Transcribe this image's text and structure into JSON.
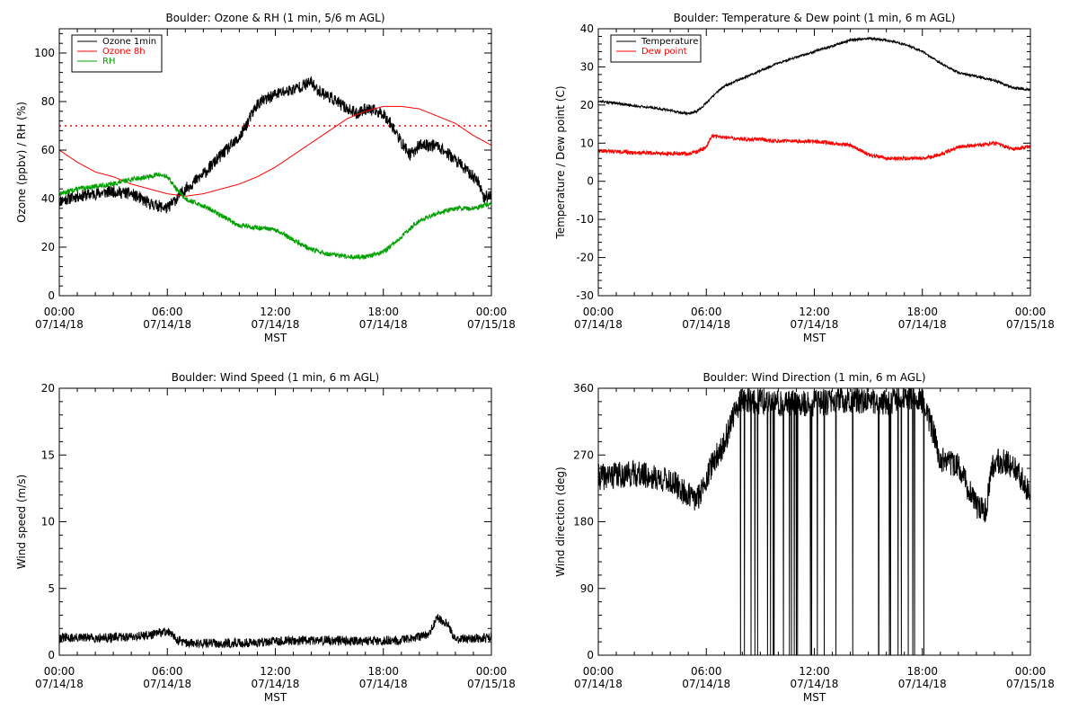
{
  "x_tick_labels": [
    [
      "00:00",
      "07/14/18"
    ],
    [
      "06:00",
      "07/14/18"
    ],
    [
      "12:00",
      "07/14/18"
    ],
    [
      "18:00",
      "07/14/18"
    ],
    [
      "00:00",
      "07/15/18"
    ]
  ],
  "chart_data": [
    {
      "type": "line",
      "title": "Boulder: Ozone & RH (1 min, 5/6 m AGL)",
      "xlabel": "MST",
      "ylabel": "Ozone (ppbv) / RH (%)",
      "xlim": [
        0,
        24
      ],
      "ylim": [
        0,
        110
      ],
      "yticks": [
        0,
        20,
        40,
        60,
        80,
        100
      ],
      "grid": false,
      "legend_position": "top-left",
      "reference_lines": [
        {
          "y": 70,
          "color": "#ff0000",
          "style": "dotted"
        }
      ],
      "series": [
        {
          "name": "Ozone 1min",
          "color": "#000000",
          "noise": 2.5,
          "seed": 11,
          "x": [
            0,
            1,
            2,
            3,
            4,
            4.5,
            5,
            5.5,
            6,
            6.5,
            7,
            7.5,
            8,
            9,
            10,
            10.5,
            11,
            12,
            13,
            14,
            14.3,
            15,
            16,
            16.5,
            17,
            18,
            18.5,
            19,
            19.5,
            20,
            21,
            22,
            23,
            23.3,
            23.6,
            24
          ],
          "y": [
            39,
            41,
            42,
            43,
            42,
            40,
            38,
            37,
            36,
            40,
            44,
            47,
            50,
            58,
            65,
            72,
            79,
            83,
            85,
            88,
            85,
            82,
            77,
            75,
            77,
            75,
            70,
            63,
            58,
            62,
            62,
            56,
            49,
            47,
            40,
            42
          ]
        },
        {
          "name": "Ozone 8h",
          "color": "#ff0000",
          "noise": 0,
          "seed": 12,
          "x": [
            0,
            1,
            2,
            3,
            4,
            5,
            6,
            7,
            8,
            9,
            10,
            11,
            12,
            13,
            14,
            15,
            16,
            17,
            18,
            19,
            20,
            21,
            22,
            23,
            24
          ],
          "y": [
            60,
            55,
            51,
            49,
            46,
            44,
            42,
            41,
            42,
            44,
            46,
            49,
            53,
            58,
            63,
            68,
            73,
            76,
            78,
            78,
            77,
            74,
            71,
            66,
            62
          ]
        },
        {
          "name": "RH",
          "color": "#00a000",
          "noise": 1.0,
          "seed": 13,
          "x": [
            0,
            1,
            2,
            3,
            4,
            5,
            5.5,
            6,
            6.5,
            7,
            8,
            9,
            10,
            11,
            12,
            13,
            14,
            15,
            16,
            17,
            18,
            19,
            19.5,
            20,
            21,
            22,
            23,
            24
          ],
          "y": [
            42,
            44,
            45,
            46,
            48,
            49,
            50,
            49,
            44,
            40,
            37,
            33,
            29,
            28,
            27,
            23,
            19,
            17,
            16,
            16,
            18,
            24,
            28,
            31,
            34,
            36,
            36,
            38
          ]
        }
      ]
    },
    {
      "type": "line",
      "title": "Boulder: Temperature & Dew point (1 min, 6 m AGL)",
      "xlabel": "MST",
      "ylabel": "Temperature / Dew point (C)",
      "xlim": [
        0,
        24
      ],
      "ylim": [
        -30,
        40
      ],
      "yticks": [
        -30,
        -20,
        -10,
        0,
        10,
        20,
        30,
        40
      ],
      "grid": false,
      "legend_position": "top-left",
      "series": [
        {
          "name": "Temperature",
          "color": "#000000",
          "noise": 0.3,
          "seed": 21,
          "x": [
            0,
            1,
            2,
            3,
            4,
            4.5,
            5,
            5.5,
            6,
            6.5,
            7,
            8,
            9,
            10,
            11,
            12,
            13,
            14,
            15,
            16,
            17,
            18,
            19,
            20,
            21,
            22,
            23,
            24
          ],
          "y": [
            21,
            20.5,
            19.8,
            19.3,
            18.6,
            18,
            17.8,
            18.3,
            20.5,
            23,
            25,
            27,
            29,
            31,
            32.5,
            34,
            35.5,
            37,
            37.5,
            37,
            36,
            34,
            31,
            28.5,
            27.5,
            26.5,
            24.5,
            24
          ]
        },
        {
          "name": "Dew point",
          "color": "#ff0000",
          "noise": 0.5,
          "seed": 22,
          "x": [
            0,
            1,
            2,
            3,
            4,
            5,
            5.5,
            6,
            6.3,
            7,
            8,
            9,
            10,
            11,
            12,
            13,
            14,
            15,
            16,
            17,
            18,
            19,
            19.5,
            20,
            21,
            22,
            23,
            24
          ],
          "y": [
            8,
            7.8,
            7.5,
            7.5,
            7.3,
            7.2,
            7.8,
            9,
            12,
            11.5,
            11,
            11,
            10.5,
            10.5,
            10.5,
            10,
            9.5,
            7,
            6,
            6,
            6,
            7,
            8,
            9,
            9.5,
            10,
            8.5,
            9
          ]
        }
      ]
    },
    {
      "type": "line",
      "title": "Boulder: Wind Speed (1 min, 6 m AGL)",
      "xlabel": "MST",
      "ylabel": "Wind speed (m/s)",
      "xlim": [
        0,
        24
      ],
      "ylim": [
        0,
        20
      ],
      "yticks": [
        0,
        5,
        10,
        15,
        20
      ],
      "grid": false,
      "series": [
        {
          "color": "#000000",
          "noise": 0.35,
          "seed": 31,
          "x": [
            0,
            3,
            5,
            6,
            6.5,
            7,
            10,
            13,
            16,
            18,
            19,
            20.5,
            21,
            21.5,
            22,
            24
          ],
          "y": [
            1.3,
            1.3,
            1.5,
            1.8,
            1.2,
            0.9,
            0.9,
            1.1,
            1.1,
            1.1,
            1.1,
            1.5,
            2.8,
            2.4,
            1.2,
            1.3
          ]
        }
      ]
    },
    {
      "type": "line",
      "title": "Boulder: Wind Direction (1 min, 6 m AGL)",
      "xlabel": "MST",
      "ylabel": "Wind direction (deg)",
      "xlim": [
        0,
        24
      ],
      "ylim": [
        0,
        360
      ],
      "yticks": [
        0,
        90,
        180,
        270,
        360
      ],
      "grid": false,
      "series": [
        {
          "color": "#000000",
          "noise": 18,
          "seed": 41,
          "wrap_drops": [
            7.5,
            18.5
          ],
          "x": [
            0,
            2,
            4,
            5,
            5.5,
            6,
            6.5,
            7,
            7.5,
            8,
            10,
            12,
            14,
            16,
            17,
            18,
            18.5,
            19,
            20,
            21,
            21.5,
            22,
            23,
            24
          ],
          "y": [
            240,
            245,
            235,
            215,
            210,
            240,
            265,
            285,
            325,
            345,
            340,
            340,
            345,
            340,
            350,
            345,
            310,
            265,
            255,
            200,
            195,
            265,
            255,
            220
          ]
        }
      ]
    }
  ]
}
